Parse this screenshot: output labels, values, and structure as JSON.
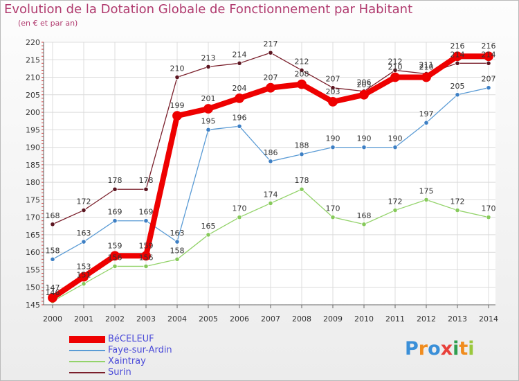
{
  "chart_data": {
    "type": "line",
    "title": "Evolution de la Dotation Globale de Fonctionnement par Habitant",
    "subtitle": "(en € et par an)",
    "categories": [
      "2000",
      "2001",
      "2002",
      "2003",
      "2004",
      "2005",
      "2006",
      "2007",
      "2008",
      "2009",
      "2010",
      "2011",
      "2012",
      "2013",
      "2014"
    ],
    "ylim": [
      145,
      220
    ],
    "yticks": [
      145,
      150,
      155,
      160,
      165,
      170,
      175,
      180,
      185,
      190,
      195,
      200,
      205,
      210,
      215,
      220
    ],
    "series": [
      {
        "name": "Surin",
        "color": "#7a1f2b",
        "values": [
          168,
          172,
          178,
          178,
          210,
          213,
          214,
          217,
          212,
          207,
          206,
          212,
          211,
          214,
          214
        ]
      },
      {
        "name": "Faye-sur-Ardin",
        "color": "#5a9bd5",
        "values": [
          158,
          163,
          169,
          169,
          163,
          195,
          196,
          186,
          188,
          190,
          190,
          190,
          197,
          205,
          207
        ]
      },
      {
        "name": "Xaintray",
        "color": "#93d36a",
        "values": [
          146,
          151,
          156,
          156,
          158,
          165,
          170,
          174,
          178,
          170,
          168,
          172,
          175,
          172,
          170
        ]
      },
      {
        "name": "BéCELEUF",
        "color": "#ee0000",
        "values": [
          147,
          153,
          159,
          159,
          199,
          201,
          204,
          207,
          208,
          203,
          205,
          210,
          210,
          216,
          216
        ]
      }
    ],
    "legend": [
      "BéCELEUF",
      "Faye-sur-Ardin",
      "Xaintray",
      "Surin"
    ]
  },
  "legend_colors": [
    "#ee0000",
    "#5a9bd5",
    "#93d36a",
    "#7a1f2b"
  ],
  "logo": {
    "letters": [
      "P",
      "r",
      "o",
      "x",
      "i",
      "t",
      "i"
    ],
    "colors": [
      "#3a8fd8",
      "#f08c1e",
      "#3a8fd8",
      "#e8403a",
      "#2e9e4f",
      "#f08c1e",
      "#9ac83c"
    ]
  }
}
